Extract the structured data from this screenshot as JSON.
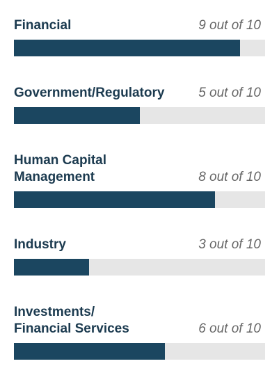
{
  "chart_data": {
    "type": "bar",
    "orientation": "horizontal",
    "categories": [
      "Financial",
      "Government/Regulatory",
      "Human Capital\nManagement",
      "Industry",
      "Investments/\nFinancial Services"
    ],
    "values": [
      9,
      5,
      8,
      3,
      6
    ],
    "value_labels": [
      "9 out of 10",
      "5 out of 10",
      "8 out of 10",
      "3 out of 10",
      "6 out of 10"
    ],
    "xlim": [
      0,
      10
    ],
    "color": "#1b4660",
    "track_color": "#e6e6e6"
  }
}
